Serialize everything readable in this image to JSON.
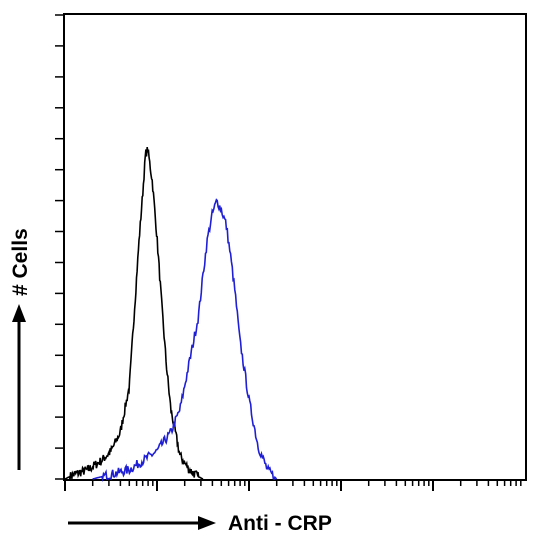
{
  "chart_data": {
    "type": "line",
    "xlabel": "Anti - CRP",
    "ylabel": "# Cells",
    "x_scale": "log",
    "x_decades": 5,
    "y_ticks": 15,
    "grid": false,
    "legend": "none",
    "series": [
      {
        "color": "#000000",
        "x": [
          0.0,
          0.02,
          0.05,
          0.08,
          0.1,
          0.12,
          0.14,
          0.15,
          0.16,
          0.17,
          0.175,
          0.18,
          0.19,
          0.2,
          0.21,
          0.22,
          0.23,
          0.25,
          0.27,
          0.29,
          0.3
        ],
        "y": [
          0.0,
          0.01,
          0.02,
          0.04,
          0.06,
          0.1,
          0.2,
          0.35,
          0.5,
          0.63,
          0.7,
          0.71,
          0.64,
          0.52,
          0.38,
          0.25,
          0.15,
          0.05,
          0.02,
          0.005,
          0.0
        ]
      },
      {
        "color": "#1f1fd6",
        "x": [
          0.06,
          0.1,
          0.14,
          0.17,
          0.2,
          0.23,
          0.25,
          0.27,
          0.29,
          0.3,
          0.31,
          0.32,
          0.33,
          0.34,
          0.35,
          0.36,
          0.37,
          0.38,
          0.4,
          0.42,
          0.44,
          0.46
        ],
        "y": [
          0.0,
          0.01,
          0.02,
          0.04,
          0.06,
          0.1,
          0.15,
          0.25,
          0.35,
          0.44,
          0.52,
          0.57,
          0.6,
          0.58,
          0.55,
          0.48,
          0.4,
          0.3,
          0.17,
          0.07,
          0.02,
          0.0
        ]
      }
    ]
  }
}
